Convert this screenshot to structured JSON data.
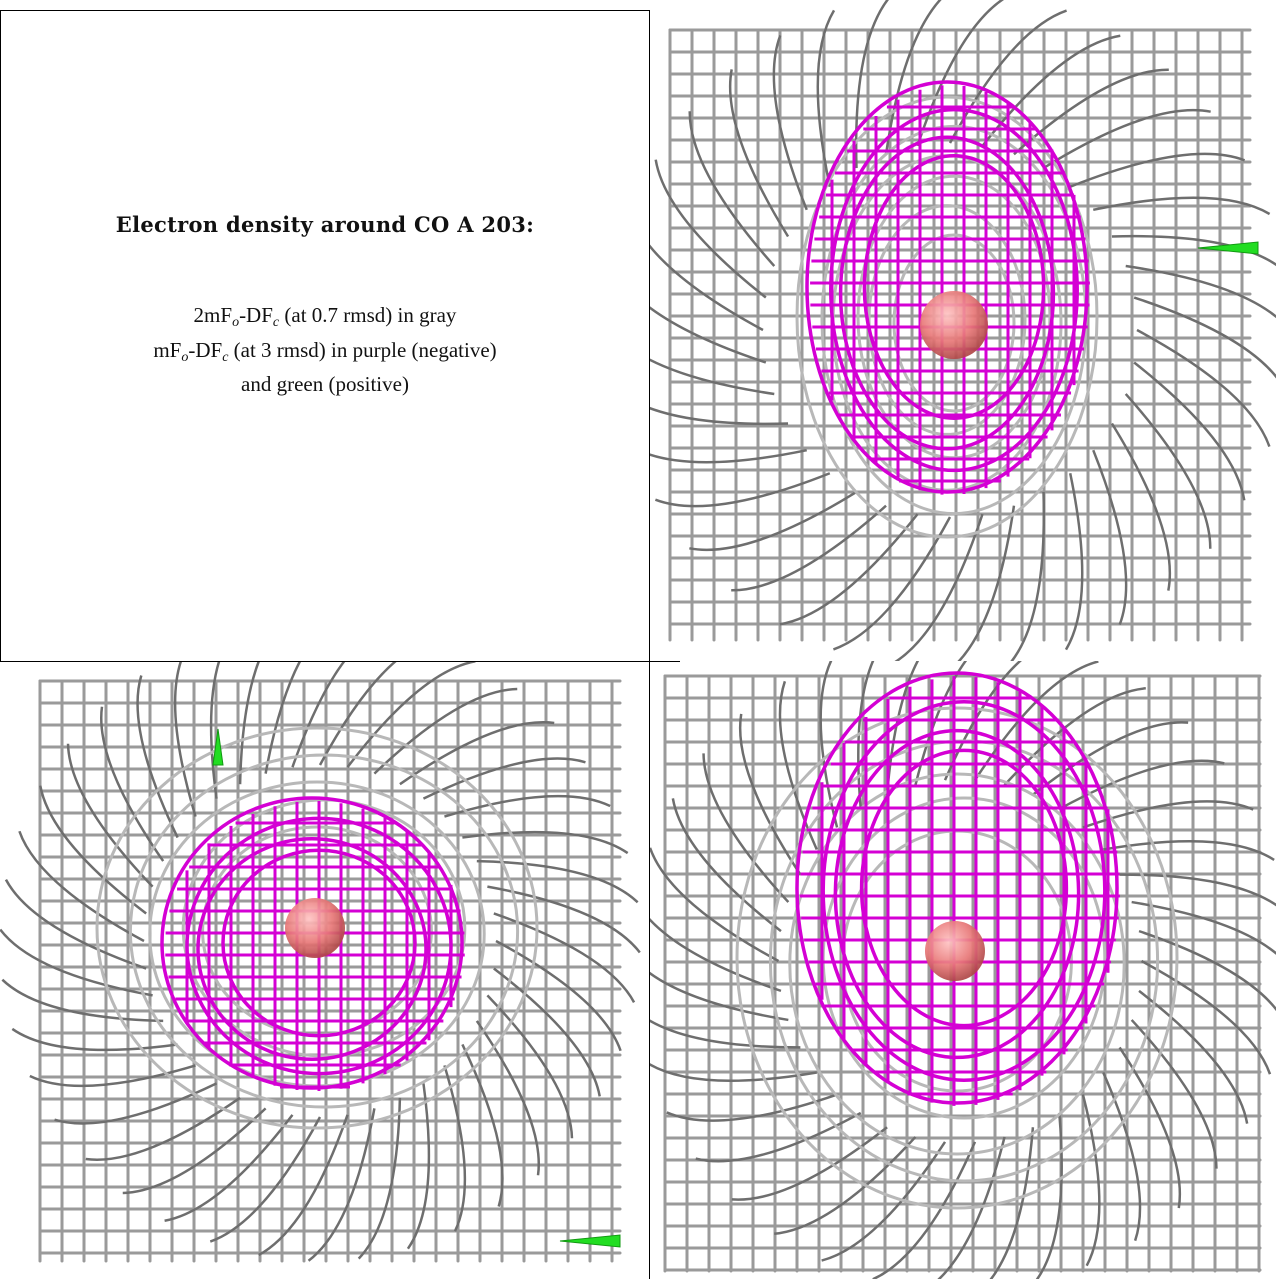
{
  "heading": "Electron density around CO A 203:",
  "legend": {
    "line1_a": "2mF",
    "line1_sub1": "o",
    "line1_b": "-DF",
    "line1_sub2": "c",
    "line1_c": " (at 0.7 rmsd) in gray",
    "line2_a": "mF",
    "line2_sub1": "o",
    "line2_b": "-DF",
    "line2_sub2": "c",
    "line2_c": " (at 3 rmsd) in purple (negative)",
    "line3": "and green (positive)"
  },
  "colors": {
    "gray_mesh": "#9a9a9a",
    "gray_mesh_dark": "#6e6e6e",
    "purple_mesh": "#d400d4",
    "green_arrow": "#22dd22",
    "atom": "#e87878"
  },
  "panels": [
    {
      "name": "view-top-right",
      "atom": "CO"
    },
    {
      "name": "view-bottom-left",
      "atom": "CO"
    },
    {
      "name": "view-bottom-right",
      "atom": "CO"
    }
  ]
}
